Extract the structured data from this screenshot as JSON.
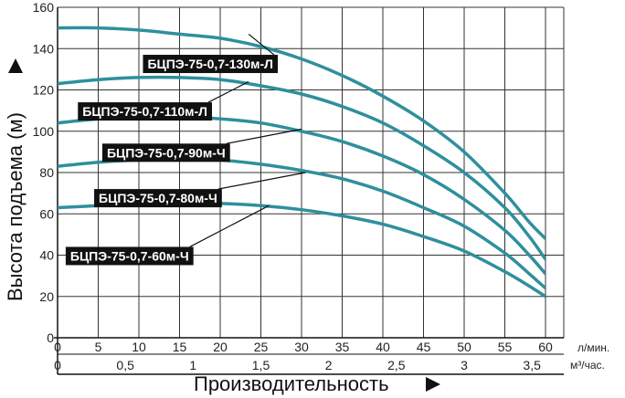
{
  "chart_data": {
    "type": "line",
    "title": "",
    "ylabel": "Высота подъема (м)",
    "xlabel": "Производительность",
    "ylim": [
      0,
      160
    ],
    "xlim": [
      0,
      60
    ],
    "yticks": [
      "0",
      "20",
      "40",
      "60",
      "80",
      "100",
      "120",
      "140",
      "160"
    ],
    "xticks_lmin": [
      "0",
      "5",
      "10",
      "15",
      "20",
      "25",
      "30",
      "35",
      "40",
      "45",
      "50",
      "55",
      "60"
    ],
    "xticks_m3h": [
      "0",
      "0,5",
      "1",
      "1,5",
      "2",
      "2,5",
      "3",
      "3,5"
    ],
    "x_unit_lmin": "л/мин.",
    "x_unit_m3h": "м³/час.",
    "grid": true,
    "line_color": "#2f8f9d",
    "series": [
      {
        "name": "БЦПЭ-75-0,7-130м-Л",
        "x": [
          0,
          5,
          10,
          15,
          20,
          25,
          30,
          35,
          40,
          45,
          50,
          55,
          58,
          60
        ],
        "y": [
          150,
          150,
          149,
          147,
          145,
          141,
          135,
          127,
          117,
          105,
          90,
          70,
          56,
          48
        ]
      },
      {
        "name": "БЦПЭ-75-0,7-110м-Л",
        "x": [
          0,
          5,
          10,
          15,
          20,
          25,
          30,
          35,
          40,
          45,
          50,
          55,
          58,
          60
        ],
        "y": [
          123,
          125,
          126,
          126,
          125,
          122,
          118,
          112,
          104,
          93,
          80,
          63,
          49,
          38
        ]
      },
      {
        "name": "БЦПЭ-75-0,7-90м-Ч",
        "x": [
          0,
          5,
          10,
          15,
          20,
          25,
          30,
          35,
          40,
          45,
          50,
          55,
          58,
          60
        ],
        "y": [
          104,
          106,
          107,
          107,
          106,
          104,
          100,
          95,
          88,
          79,
          67,
          52,
          40,
          31
        ]
      },
      {
        "name": "БЦПЭ-75-0,7-80м-Ч",
        "x": [
          0,
          5,
          10,
          15,
          20,
          25,
          30,
          35,
          40,
          45,
          50,
          55,
          58,
          60
        ],
        "y": [
          83,
          85,
          86,
          86,
          86,
          84,
          81,
          77,
          71,
          63,
          54,
          41,
          31,
          24
        ]
      },
      {
        "name": "БЦПЭ-75-0,7-60м-Ч",
        "x": [
          0,
          5,
          10,
          15,
          20,
          25,
          30,
          35,
          40,
          45,
          50,
          55,
          58,
          60
        ],
        "y": [
          63,
          64,
          65,
          65,
          65,
          64,
          62,
          59,
          55,
          49,
          42,
          32,
          25,
          20
        ]
      }
    ],
    "labels": [
      {
        "text": "БЦПЭ-75-0,7-130м-Л",
        "series": 0,
        "anchor_x": 23.5,
        "anchor_y": 147,
        "box_x": 10.5,
        "box_y": 137
      },
      {
        "text": "БЦПЭ-75-0,7-110м-Л",
        "series": 1,
        "anchor_x": 23.5,
        "anchor_y": 124,
        "box_x": 2.5,
        "box_y": 114
      },
      {
        "text": "БЦПЭ-75-0,7-90м-Ч",
        "series": 2,
        "anchor_x": 30,
        "anchor_y": 101,
        "box_x": 5.5,
        "box_y": 94
      },
      {
        "text": "БЦПЭ-75-0,7-80м-Ч",
        "series": 3,
        "anchor_x": 30.5,
        "anchor_y": 80,
        "box_x": 4.5,
        "box_y": 72
      },
      {
        "text": "БЦПЭ-75-0,7-60м-Ч",
        "series": 4,
        "anchor_x": 26,
        "anchor_y": 64,
        "box_x": 1,
        "box_y": 44
      }
    ]
  }
}
